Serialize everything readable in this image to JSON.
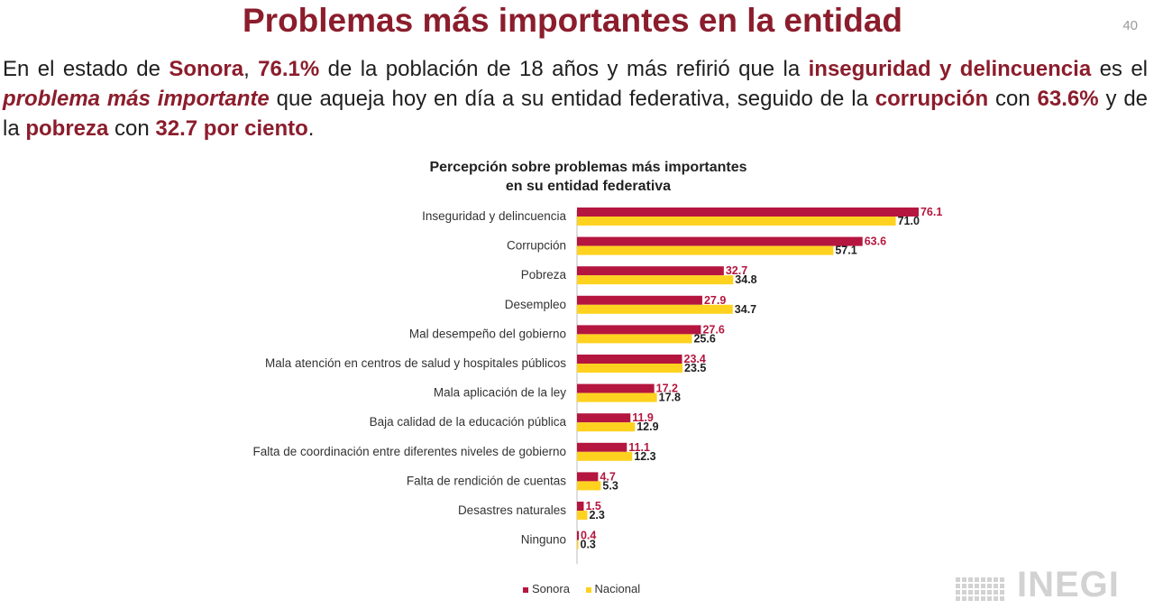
{
  "header": {
    "title": "Problemas más importantes en la entidad",
    "page_number": "40"
  },
  "summary": {
    "p1": "En el estado de ",
    "state": "Sonora",
    "p2": ", ",
    "pct1": "76.1%",
    "p3": " de la población de 18 años y más refirió que la ",
    "problem1": "inseguridad y delincuencia",
    "p4": " es el ",
    "emphasis": "problema más importante",
    "p5": " que aqueja hoy en día a su entidad federativa, seguido de la ",
    "problem2": "corrupción",
    "p6": " con ",
    "pct2": "63.6%",
    "p7": " y de la ",
    "problem3": "pobreza",
    "p8": " con ",
    "pct3": "32.7 por ciento",
    "p9": "."
  },
  "chart_data": {
    "type": "bar",
    "orientation": "horizontal",
    "title_line1": "Percepción sobre problemas más importantes",
    "title_line2": "en su entidad federativa",
    "categories": [
      "Inseguridad y delincuencia",
      "Corrupción",
      "Pobreza",
      "Desempleo",
      "Mal desempeño del gobierno",
      "Mala atención en centros de salud y hospitales públicos",
      "Mala aplicación de la ley",
      "Baja calidad de la educación pública",
      "Falta de coordinación entre diferentes niveles de gobierno",
      "Falta de rendición de cuentas",
      "Desastres naturales",
      "Ninguno"
    ],
    "series": [
      {
        "name": "Sonora",
        "color": "#b5163f",
        "label_color": "#b5163f",
        "values": [
          76.1,
          63.6,
          32.7,
          27.9,
          27.6,
          23.4,
          17.2,
          11.9,
          11.1,
          4.7,
          1.5,
          0.4
        ],
        "labels": [
          "76.1",
          "63.6",
          "32.7",
          "27.9",
          "27.6",
          "23.4",
          "17.2",
          "11.9",
          "11.1",
          "4.7",
          "1.5",
          "0.4"
        ]
      },
      {
        "name": "Nacional",
        "color": "#ffd21f",
        "label_color": "#1f1f1f",
        "values": [
          71.0,
          57.1,
          34.8,
          34.7,
          25.6,
          23.5,
          17.8,
          12.9,
          12.3,
          5.3,
          2.3,
          0.3
        ],
        "labels": [
          "71.0",
          "57.1",
          "34.8",
          "34.7",
          "25.6",
          "23.5",
          "17.8",
          "12.9",
          "12.3",
          "5.3",
          "2.3",
          "0.3"
        ]
      }
    ],
    "xlim": [
      0,
      100
    ],
    "legend_position": "bottom"
  },
  "logo": {
    "text": "INEGI"
  }
}
